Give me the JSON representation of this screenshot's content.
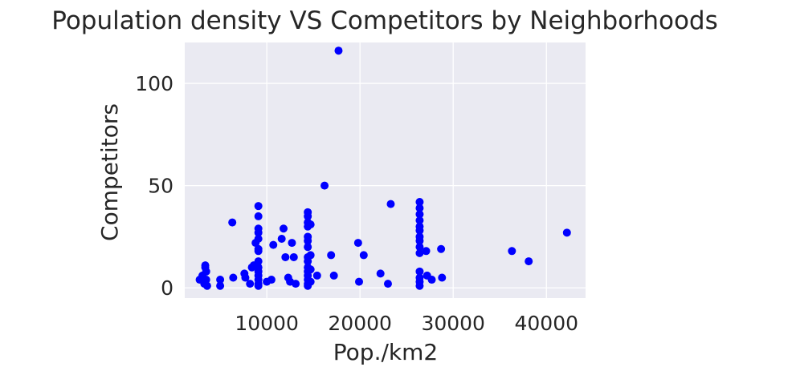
{
  "chart_data": {
    "type": "scatter",
    "title": "Population density VS Competitors by Neighborhoods",
    "xlabel": "Pop./km2",
    "ylabel": "Competitors",
    "xlim": [
      1200,
      44200
    ],
    "ylim": [
      -5,
      120
    ],
    "xticks": [
      10000,
      20000,
      30000,
      40000
    ],
    "yticks": [
      0,
      50,
      100
    ],
    "grid": true,
    "legend": "none",
    "colors": {
      "background": "#eaeaf2",
      "grid": "#ffffff",
      "marker": "#0000ff"
    },
    "points": [
      [
        2800,
        4
      ],
      [
        3100,
        6
      ],
      [
        3300,
        2
      ],
      [
        3400,
        10
      ],
      [
        3400,
        11
      ],
      [
        3500,
        8
      ],
      [
        3500,
        4
      ],
      [
        3600,
        1
      ],
      [
        3300,
        3
      ],
      [
        5000,
        1
      ],
      [
        5000,
        4
      ],
      [
        6300,
        32
      ],
      [
        6400,
        5
      ],
      [
        7600,
        7
      ],
      [
        7700,
        5
      ],
      [
        8200,
        2
      ],
      [
        8400,
        10
      ],
      [
        8600,
        11
      ],
      [
        8800,
        22
      ],
      [
        9100,
        40
      ],
      [
        9100,
        35
      ],
      [
        9100,
        29
      ],
      [
        9100,
        27
      ],
      [
        9100,
        24
      ],
      [
        9100,
        19
      ],
      [
        9100,
        18
      ],
      [
        9100,
        13
      ],
      [
        9100,
        10
      ],
      [
        9100,
        8
      ],
      [
        9100,
        6
      ],
      [
        9100,
        4
      ],
      [
        9100,
        2
      ],
      [
        9100,
        1
      ],
      [
        10000,
        3
      ],
      [
        10500,
        4
      ],
      [
        10700,
        21
      ],
      [
        11600,
        24
      ],
      [
        11800,
        29
      ],
      [
        12000,
        15
      ],
      [
        12300,
        5
      ],
      [
        12500,
        3
      ],
      [
        12700,
        22
      ],
      [
        12900,
        15
      ],
      [
        13100,
        2
      ],
      [
        14400,
        37
      ],
      [
        14400,
        35
      ],
      [
        14400,
        32
      ],
      [
        14400,
        30
      ],
      [
        14400,
        25
      ],
      [
        14400,
        23
      ],
      [
        14400,
        20
      ],
      [
        14400,
        15
      ],
      [
        14400,
        13
      ],
      [
        14400,
        10
      ],
      [
        14400,
        8
      ],
      [
        14400,
        6
      ],
      [
        14400,
        4
      ],
      [
        14400,
        2
      ],
      [
        14400,
        1
      ],
      [
        14700,
        31
      ],
      [
        14700,
        16
      ],
      [
        14700,
        9
      ],
      [
        14700,
        3
      ],
      [
        15400,
        6
      ],
      [
        16200,
        50
      ],
      [
        16900,
        16
      ],
      [
        17200,
        6
      ],
      [
        17700,
        116
      ],
      [
        19800,
        22
      ],
      [
        19900,
        3
      ],
      [
        20400,
        16
      ],
      [
        22200,
        7
      ],
      [
        23000,
        2
      ],
      [
        23300,
        41
      ],
      [
        26400,
        42
      ],
      [
        26400,
        39
      ],
      [
        26400,
        36
      ],
      [
        26400,
        33
      ],
      [
        26400,
        30
      ],
      [
        26400,
        28
      ],
      [
        26400,
        25
      ],
      [
        26400,
        23
      ],
      [
        26400,
        20
      ],
      [
        26400,
        17
      ],
      [
        26400,
        8
      ],
      [
        26400,
        5
      ],
      [
        26400,
        3
      ],
      [
        26400,
        1
      ],
      [
        27100,
        18
      ],
      [
        27200,
        6
      ],
      [
        27700,
        4
      ],
      [
        28700,
        19
      ],
      [
        28800,
        5
      ],
      [
        36300,
        18
      ],
      [
        38100,
        13
      ],
      [
        42200,
        27
      ]
    ]
  }
}
